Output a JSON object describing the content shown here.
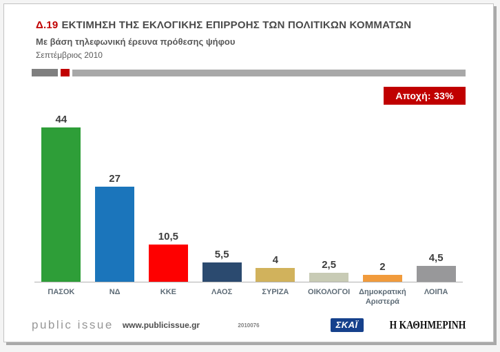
{
  "header": {
    "tag": "Δ.19",
    "title": "ΕΚΤΙΜΗΣΗ ΤΗΣ ΕΚΛΟΓΙΚΗΣ ΕΠΙΡΡΟΗΣ ΤΩΝ ΠΟΛΙΤΙΚΩΝ ΚΟΜΜΑΤΩΝ",
    "subtitle": "Με βάση τηλεφωνική έρευνα πρόθεσης ψήφου",
    "date": "Σεπτέμβριος 2010",
    "accent_color": "#c00000"
  },
  "badge": {
    "text": "Αποχή: 33%",
    "bg": "#c00000",
    "fg": "#ffffff"
  },
  "chart_data": {
    "type": "bar",
    "title": "Δ.19 ΕΚΤΙΜΗΣΗ ΤΗΣ ΕΚΛΟΓΙΚΗΣ ΕΠΙΡΡΟΗΣ ΤΩΝ ΠΟΛΙΤΙΚΩΝ ΚΟΜΜΑΤΩΝ",
    "subtitle": "Με βάση τηλεφωνική έρευνα πρόθεσης ψήφου — Σεπτέμβριος 2010",
    "categories": [
      "ΠΑΣΟΚ",
      "ΝΔ",
      "ΚΚΕ",
      "ΛΑΟΣ",
      "ΣΥΡΙΖΑ",
      "ΟΙΚΟΛΟΓΟΙ",
      "Δημοκρατική Αριστερά",
      "ΛΟΙΠΑ"
    ],
    "values": [
      44,
      27,
      10.5,
      5.5,
      4,
      2.5,
      2,
      4.5
    ],
    "value_labels": [
      "44",
      "27",
      "10,5",
      "5,5",
      "4",
      "2,5",
      "2",
      "4,5"
    ],
    "colors": [
      "#2e9e38",
      "#1b75bb",
      "#fe0000",
      "#2b4a6f",
      "#d1b25c",
      "#c8cbb5",
      "#f19b3c",
      "#98989a"
    ],
    "xlabel": "",
    "ylabel": "",
    "ylim": [
      0,
      48
    ],
    "grid": false,
    "legend": "none",
    "annotation": "Αποχή: 33%"
  },
  "footer": {
    "logo": "public issue",
    "website": "www.publicissue.gr",
    "code": "2010076",
    "skai_logo": "ΣΚΑΪ",
    "kathimerini_logo": "Η ΚΑΘΗΜΕΡΙΝΗ"
  }
}
